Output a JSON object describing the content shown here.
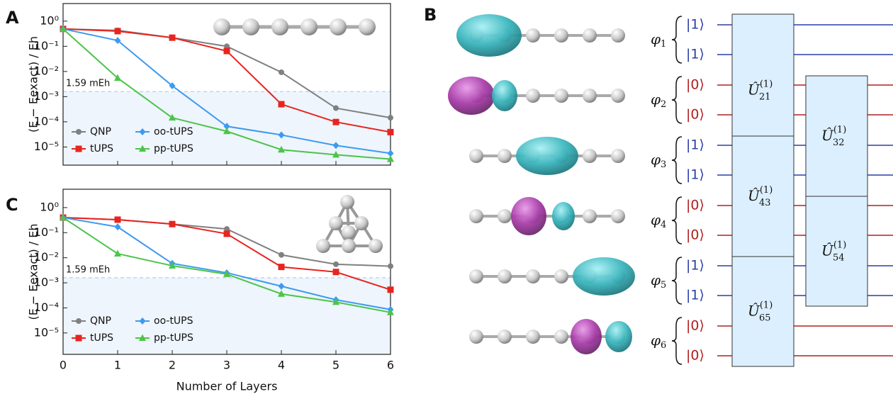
{
  "chart_data": [
    {
      "type": "line",
      "panel_label": "A",
      "ylabel": "(E − Eexact) / Eh",
      "log_y": true,
      "show_xtick_labels": false,
      "x": [
        0,
        1,
        2,
        3,
        4,
        5,
        6
      ],
      "xlim": [
        0,
        6
      ],
      "xticks": [
        0,
        1,
        2,
        3,
        4,
        5,
        6
      ],
      "ylim": [
        1.9e-06,
        5
      ],
      "yticks": [
        {
          "value": 1,
          "label": "10⁰"
        },
        {
          "value": 0.1,
          "label": "10⁻¹"
        },
        {
          "value": 0.01,
          "label": "10⁻²"
        },
        {
          "value": 0.001,
          "label": "10⁻³"
        },
        {
          "value": 0.0001,
          "label": "10⁻⁴"
        },
        {
          "value": 1e-05,
          "label": "10⁻⁵"
        }
      ],
      "threshold": {
        "value": 0.00159,
        "label": "1.59 mEh"
      },
      "legend": "lower left",
      "series": [
        {
          "name": "QNP",
          "color": "#808080",
          "marker": "circle",
          "values": [
            0.49,
            0.43,
            0.22,
            0.1,
            0.0093,
            0.00035,
            0.000145
          ]
        },
        {
          "name": "tUPS",
          "color": "#e8241f",
          "marker": "square",
          "values": [
            0.49,
            0.4,
            0.22,
            0.065,
            0.0005,
            9.8e-05,
            3.9e-05
          ]
        },
        {
          "name": "oo-tUPS",
          "color": "#3d9af0",
          "marker": "diamond",
          "values": [
            0.49,
            0.17,
            0.0027,
            6.6e-05,
            3e-05,
            1.15e-05,
            5.6e-06
          ]
        },
        {
          "name": "pp-tUPS",
          "color": "#4cc44a",
          "marker": "triangle",
          "values": [
            0.49,
            0.0055,
            0.000145,
            4.2e-05,
            7.8e-06,
            4.9e-06,
            3.3e-06
          ]
        }
      ]
    },
    {
      "type": "line",
      "panel_label": "C",
      "ylabel": "(E − Eexact) / Eh",
      "xlabel": "Number of Layers",
      "log_y": true,
      "show_xtick_labels": true,
      "x": [
        0,
        1,
        2,
        3,
        4,
        5,
        6
      ],
      "xlim": [
        0,
        6
      ],
      "xticks": [
        0,
        1,
        2,
        3,
        4,
        5,
        6
      ],
      "ylim": [
        1.4e-06,
        5.4
      ],
      "yticks": [
        {
          "value": 1,
          "label": "10⁰"
        },
        {
          "value": 0.1,
          "label": "10⁻¹"
        },
        {
          "value": 0.01,
          "label": "10⁻²"
        },
        {
          "value": 0.001,
          "label": "10⁻³"
        },
        {
          "value": 0.0001,
          "label": "10⁻⁴"
        },
        {
          "value": 1e-05,
          "label": "10⁻⁵"
        }
      ],
      "threshold": {
        "value": 0.00159,
        "label": "1.59 mEh"
      },
      "legend": "lower left",
      "series": [
        {
          "name": "QNP",
          "color": "#808080",
          "marker": "circle",
          "values": [
            0.4,
            0.33,
            0.22,
            0.14,
            0.013,
            0.0055,
            0.0046
          ]
        },
        {
          "name": "tUPS",
          "color": "#e8241f",
          "marker": "square",
          "values": [
            0.4,
            0.33,
            0.22,
            0.09,
            0.0043,
            0.0027,
            0.00053
          ]
        },
        {
          "name": "oo-tUPS",
          "color": "#3d9af0",
          "marker": "diamond",
          "values": [
            0.4,
            0.17,
            0.0059,
            0.0025,
            0.00073,
            0.00021,
            8.6e-05
          ]
        },
        {
          "name": "pp-tUPS",
          "color": "#4cc44a",
          "marker": "triangle",
          "values": [
            0.4,
            0.0145,
            0.0048,
            0.0022,
            0.00036,
            0.00017,
            6.6e-05
          ]
        }
      ]
    }
  ],
  "diagram": {
    "panel_label": "B",
    "orbitals": [
      {
        "symbol": "φ",
        "subscript": "1",
        "qubits": [
          "|1⟩",
          "|1⟩"
        ]
      },
      {
        "symbol": "φ",
        "subscript": "2",
        "qubits": [
          "|0⟩",
          "|0⟩"
        ]
      },
      {
        "symbol": "φ",
        "subscript": "3",
        "qubits": [
          "|1⟩",
          "|1⟩"
        ]
      },
      {
        "symbol": "φ",
        "subscript": "4",
        "qubits": [
          "|0⟩",
          "|0⟩"
        ]
      },
      {
        "symbol": "φ",
        "subscript": "5",
        "qubits": [
          "|1⟩",
          "|1⟩"
        ]
      },
      {
        "symbol": "φ",
        "subscript": "6",
        "qubits": [
          "|0⟩",
          "|0⟩"
        ]
      }
    ],
    "gates": [
      {
        "symbol": "Û",
        "superscript": "(1)",
        "subscript": "21"
      },
      {
        "symbol": "Û",
        "superscript": "(1)",
        "subscript": "32"
      },
      {
        "symbol": "Û",
        "superscript": "(1)",
        "subscript": "43"
      },
      {
        "symbol": "Û",
        "superscript": "(1)",
        "subscript": "54"
      },
      {
        "symbol": "Û",
        "superscript": "(1)",
        "subscript": "65"
      }
    ]
  }
}
